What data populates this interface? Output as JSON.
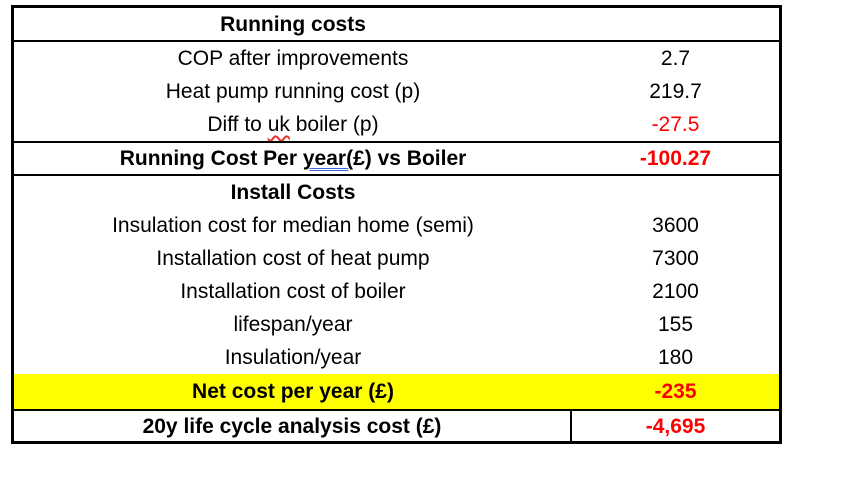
{
  "colors": {
    "negative_value": "#FF0000",
    "highlight_row": "#FFFF00",
    "spellcheck_underline": "#E5352B",
    "grammar_underline": "#3C6BD9",
    "border": "#000000"
  },
  "table": {
    "rows": [
      {
        "label": "Running costs"
      },
      {
        "label": "COP after improvements",
        "value": "2.7"
      },
      {
        "label": "Heat pump running cost (p)",
        "value": "219.7"
      },
      {
        "label_pre": "Diff to ",
        "label_flagged": "uk",
        "label_post": " boiler (p)",
        "value": "-27.5"
      },
      {
        "label_pre": "Running Cost Per ",
        "label_flagged": "year(",
        "label_post": "£) vs Boiler",
        "value": "-100.27"
      },
      {
        "label": "Install Costs"
      },
      {
        "label": "Insulation cost for median home (semi)",
        "value": "3600"
      },
      {
        "label": "Installation cost of heat pump",
        "value": "7300"
      },
      {
        "label": "Installation cost of boiler",
        "value": "2100"
      },
      {
        "label": "lifespan/year",
        "value": "155"
      },
      {
        "label": "Insulation/year",
        "value": "180"
      },
      {
        "label": "Net cost per year (£)",
        "value": "-235"
      },
      {
        "label": "20y life cycle analysis cost (£)",
        "value": "-4,695"
      }
    ]
  }
}
